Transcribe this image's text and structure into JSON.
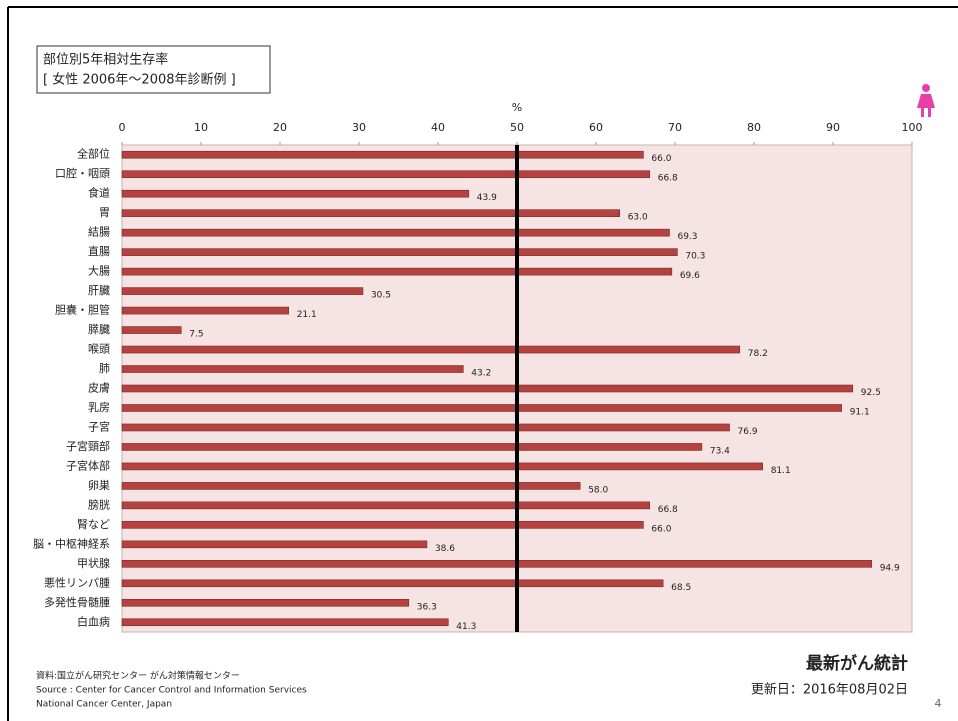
{
  "chart_data": {
    "type": "bar",
    "orientation": "horizontal",
    "title_lines": [
      "部位別5年相対生存率",
      "[ 女性  2006年～2008年診断例 ]"
    ],
    "x_label": "%",
    "categories": [
      "全部位",
      "口腔・咽頭",
      "食道",
      "胃",
      "結腸",
      "直腸",
      "大腸",
      "肝臓",
      "胆嚢・胆管",
      "膵臓",
      "喉頭",
      "肺",
      "皮膚",
      "乳房",
      "子宮",
      "子宮頸部",
      "子宮体部",
      "卵巣",
      "膀胱",
      "腎など",
      "脳・中枢神経系",
      "甲状腺",
      "悪性リンパ腫",
      "多発性骨髄腫",
      "白血病"
    ],
    "values": [
      66.0,
      66.8,
      43.9,
      63.0,
      69.3,
      70.3,
      69.6,
      30.5,
      21.1,
      7.5,
      78.2,
      43.2,
      92.5,
      91.1,
      76.9,
      73.4,
      81.1,
      58.0,
      66.8,
      66.0,
      38.6,
      94.9,
      68.5,
      36.3,
      41.3
    ],
    "value_labels": [
      "66.0",
      "66.8",
      "43.9",
      "63.0",
      "69.3",
      "70.3",
      "69.6",
      "30.5",
      "21.1",
      "7.5",
      "78.2",
      "43.2",
      "92.5",
      "91.1",
      "76.9",
      "73.4",
      "81.1",
      "58.0",
      "66.8",
      "66.0",
      "38.6",
      "94.9",
      "68.5",
      "36.3",
      "41.3"
    ],
    "color": "#b5423f",
    "xlim": [
      0,
      100
    ],
    "xticks": [
      0,
      10,
      20,
      30,
      40,
      50,
      60,
      70,
      80,
      90,
      100
    ],
    "reference_line": 50,
    "plot_background": "#f6e4e4"
  },
  "footer": {
    "source_lines": [
      "資料:国立がん研究センター  がん対策情報センター",
      "Source : Center for Cancer Control and Information Services",
      "National Cancer Center, Japan"
    ],
    "heading": "最新がん統計",
    "updated": "更新日：2016年08月02日",
    "page_number": "4"
  }
}
